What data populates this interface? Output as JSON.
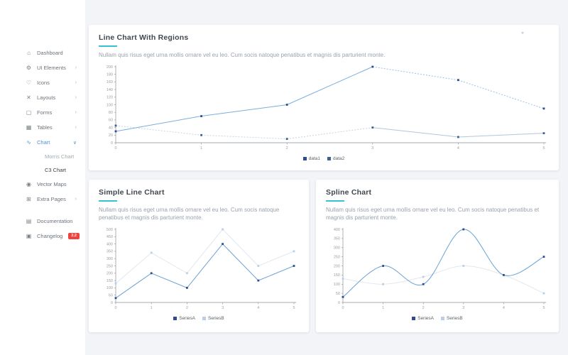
{
  "colors": {
    "accent_underline": "#35c3ce",
    "active_blue": "#4a8fe2",
    "badge_red": "#f0413e",
    "card_bg": "#ffffff",
    "content_bg": "#f2f4f7",
    "axis": "#8a9097",
    "tick_text": "#9aa0a6"
  },
  "sidebar": {
    "items": [
      {
        "label": "Dashboard",
        "icon": "dashboard-icon",
        "glyph": "⌂",
        "chevron": false
      },
      {
        "label": "UI Elements",
        "icon": "ui-elements-icon",
        "glyph": "⚙",
        "chevron": true
      },
      {
        "label": "Icons",
        "icon": "icons-icon",
        "glyph": "♡",
        "chevron": true
      },
      {
        "label": "Layouts",
        "icon": "layouts-icon",
        "glyph": "✕",
        "chevron": true
      },
      {
        "label": "Forms",
        "icon": "forms-icon",
        "glyph": "▢",
        "chevron": true
      },
      {
        "label": "Tables",
        "icon": "tables-icon",
        "glyph": "▦",
        "chevron": true
      },
      {
        "label": "Chart",
        "icon": "chart-icon",
        "glyph": "∿",
        "chevron": true,
        "expanded": true,
        "active": true,
        "children": [
          {
            "label": "Morris Chart",
            "active": false
          },
          {
            "label": "C3 Chart",
            "active": true
          }
        ]
      },
      {
        "label": "Vector Maps",
        "icon": "vector-maps-icon",
        "glyph": "◉",
        "chevron": false
      },
      {
        "label": "Extra Pages",
        "icon": "extra-pages-icon",
        "glyph": "⊞",
        "chevron": true
      }
    ],
    "footer_items": [
      {
        "label": "Documentation",
        "icon": "documentation-icon",
        "glyph": "▤"
      },
      {
        "label": "Changelog",
        "icon": "changelog-icon",
        "glyph": "▣",
        "badge": "2.2"
      }
    ],
    "chevron_collapsed_glyph": "›",
    "chevron_expanded_glyph": "∨"
  },
  "cards": [
    {
      "title": "Line Chart With Regions",
      "description": "Nullam quis risus eget urna mollis ornare vel eu leo. Cum socis natoque penatibus et magnis dis parturient monte."
    },
    {
      "title": "Simple Line Chart",
      "description": "Nullam quis risus eget urna mollis ornare vel eu leo. Cum socis natoque penatibus et magnis dis parturient monte."
    },
    {
      "title": "Spline Chart",
      "description": "Nullam quis risus eget urna mollis ornare vel eu leo. Cum socis natoque penatibus et magnis dis parturient monte."
    }
  ],
  "chart_data": [
    {
      "type": "line",
      "title": "Line Chart With Regions",
      "x": [
        0,
        1,
        2,
        3,
        4,
        5
      ],
      "xlabel": "",
      "ylabel": "",
      "ylim": [
        0,
        200
      ],
      "ytick_step": 20,
      "grid": false,
      "legend_position": "bottom",
      "series": [
        {
          "name": "data1",
          "values": [
            30,
            70,
            100,
            200,
            165,
            90
          ],
          "line_color": "#79aede",
          "point_color": "#2d4d8e",
          "dashed_segments": [
            [
              3,
              5
            ]
          ]
        },
        {
          "name": "data2",
          "values": [
            45,
            20,
            10,
            40,
            15,
            25
          ],
          "line_color": "#b3c6da",
          "point_color": "#3f5f97",
          "dashed_segments": [
            [
              0,
              3
            ]
          ]
        }
      ]
    },
    {
      "type": "line",
      "title": "Simple Line Chart",
      "x": [
        0,
        1,
        2,
        3,
        4,
        5
      ],
      "xlabel": "",
      "ylabel": "",
      "ylim": [
        0,
        500
      ],
      "ytick_step": 50,
      "grid": false,
      "legend_position": "bottom",
      "series": [
        {
          "name": "SeriesA",
          "values": [
            30,
            200,
            100,
            400,
            150,
            250
          ],
          "line_color": "#6ba2d4",
          "point_color": "#2d4d8e"
        },
        {
          "name": "SeriesB",
          "values": [
            130,
            340,
            200,
            500,
            250,
            350
          ],
          "line_color": "#e3e8ee",
          "point_color": "#b9cfe8"
        }
      ]
    },
    {
      "type": "spline",
      "title": "Spline Chart",
      "x": [
        0,
        1,
        2,
        3,
        4,
        5
      ],
      "xlabel": "",
      "ylabel": "",
      "ylim": [
        0,
        400
      ],
      "ytick_step": 50,
      "grid": false,
      "legend_position": "bottom",
      "series": [
        {
          "name": "SeriesA",
          "values": [
            30,
            200,
            100,
            400,
            150,
            250
          ],
          "line_color": "#6ba2d4",
          "point_color": "#2d4d8e"
        },
        {
          "name": "SeriesB",
          "values": [
            130,
            100,
            140,
            200,
            150,
            50
          ],
          "line_color": "#e3e8ee",
          "point_color": "#b9cfe8"
        }
      ]
    }
  ]
}
